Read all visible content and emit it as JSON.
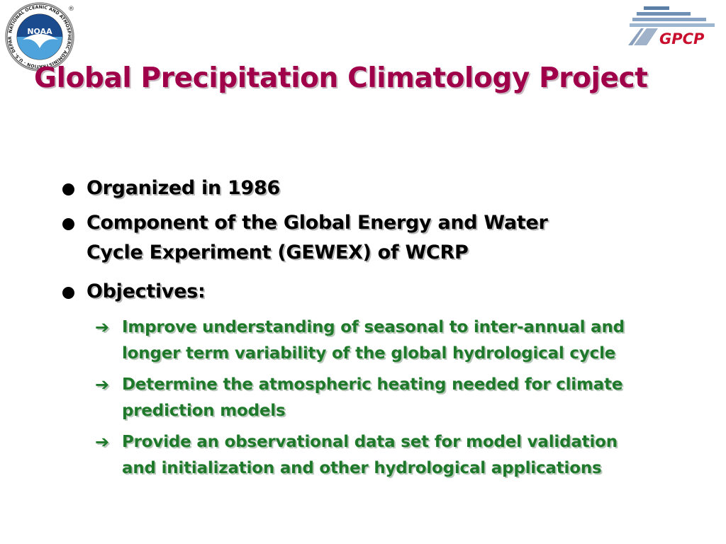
{
  "logos": {
    "noaa_text": "NOAA",
    "noaa_ring": "NATIONAL OCEANIC AND ATMOSPHERIC ADMINISTRATION · U.S. DEPARTMENT OF COMMERCE",
    "registered": "®",
    "gpcp_text": "GPCP"
  },
  "slide": {
    "title": "Global Precipitation Climatology Project",
    "bullets": [
      {
        "lines": [
          "Organized in 1986"
        ]
      },
      {
        "lines": [
          "Component of the Global Energy and Water",
          "Cycle  Experiment (GEWEX) of WCRP"
        ]
      },
      {
        "lines": [
          "Objectives:"
        ]
      }
    ],
    "objectives": [
      {
        "lines": [
          "Improve understanding of seasonal to inter-annual and",
          "longer term variability of the global hydrological cycle"
        ]
      },
      {
        "lines": [
          "Determine the atmospheric heating needed for climate",
          "prediction  models"
        ]
      },
      {
        "lines": [
          "Provide  an observational data set for model validation",
          "and initialization and other hydrological applications"
        ]
      }
    ],
    "arrow_glyph": "➔"
  },
  "colors": {
    "title": "#a0004a",
    "bullet_text": "#000000",
    "objective_text": "#1e7a2a",
    "gpcp_red": "#c8102e",
    "noaa_blue": "#1a4b8f"
  }
}
